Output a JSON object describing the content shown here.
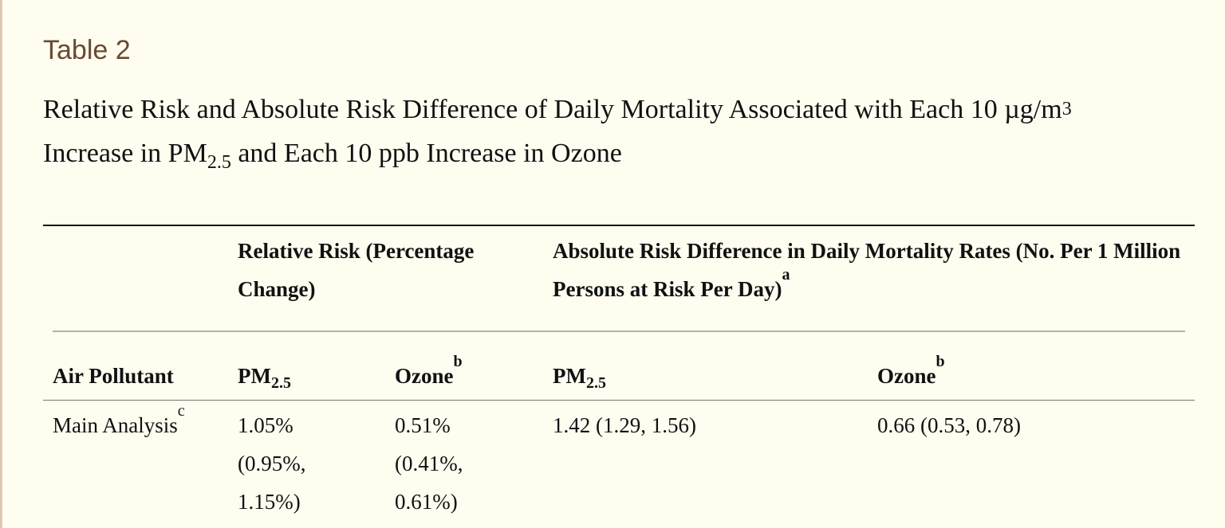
{
  "table_label": "Table 2",
  "caption": {
    "part1": "Relative Risk and Absolute Risk Difference of Daily Mortality Associated with Each 10 µg/m",
    "sup": "3",
    "part2": "Increase in PM",
    "sub": "2.5",
    "part3": " and Each 10 ppb Increase in Ozone"
  },
  "header": {
    "group_relative_risk": "Relative Risk (Percentage Change)",
    "group_absolute_risk": "Absolute Risk Difference in Daily Mortality Rates (No. Per 1 Million Persons at Risk Per Day)",
    "group_absolute_risk_note": "a",
    "row_label": "Air Pollutant",
    "pm_prefix": "PM",
    "pm_sub": "2.5",
    "ozone": "Ozone",
    "ozone_note": "b"
  },
  "rows": [
    {
      "label": "Main Analysis",
      "label_note": "c",
      "rr_pm25": "1.05% (0.95%, 1.15%)",
      "rr_ozone": "0.51% (0.41%, 0.61%)",
      "ard_pm25": "1.42 (1.29, 1.56)",
      "ard_ozone": "0.66 (0.53, 0.78)"
    }
  ]
}
